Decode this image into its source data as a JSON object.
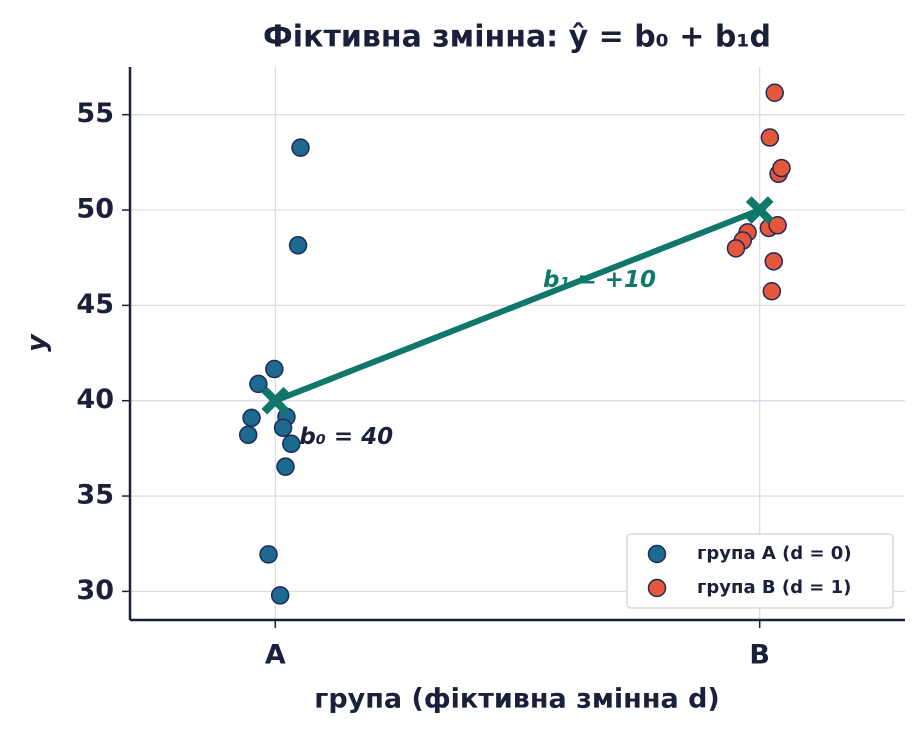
{
  "chart_data": {
    "type": "scatter",
    "title": "Фіктивна змінна: ŷ = b₀ + b₁d",
    "x_label": "група (фіктивна змінна d)",
    "y_label": "y",
    "xlim": [
      -0.3,
      1.3
    ],
    "xticks": [
      {
        "value": 0,
        "label": "A"
      },
      {
        "value": 1,
        "label": "B"
      }
    ],
    "ylim": [
      28.5,
      57.5
    ],
    "yticks": [
      30,
      35,
      40,
      45,
      50,
      55
    ],
    "grid": true,
    "legend": "lower right",
    "series": [
      {
        "name": "група A (d = 0)",
        "color": "#1d6a91",
        "x": [
          0.052,
          0.047,
          -0.002,
          -0.035,
          0.023,
          -0.049,
          0.016,
          -0.056,
          0.033,
          0.021,
          -0.014,
          0.01
        ],
        "values": [
          53.27,
          48.15,
          41.66,
          40.88,
          39.15,
          39.1,
          38.58,
          38.21,
          37.74,
          36.54,
          31.94,
          29.79
        ]
      },
      {
        "name": "група B (d = 1)",
        "color": "#e5573a",
        "x": [
          1.031,
          1.021,
          1.039,
          1.045,
          1.019,
          1.037,
          0.975,
          0.965,
          0.951,
          1.029,
          1.025
        ],
        "values": [
          56.15,
          53.8,
          51.9,
          52.2,
          49.06,
          49.2,
          48.83,
          48.4,
          47.99,
          47.31,
          45.74
        ]
      }
    ],
    "fit_line": {
      "color": "#10776b",
      "x": [
        0,
        1
      ],
      "values": [
        40,
        50
      ]
    },
    "annotations": [
      "b₀ = 40",
      "b₁ = +10"
    ]
  }
}
